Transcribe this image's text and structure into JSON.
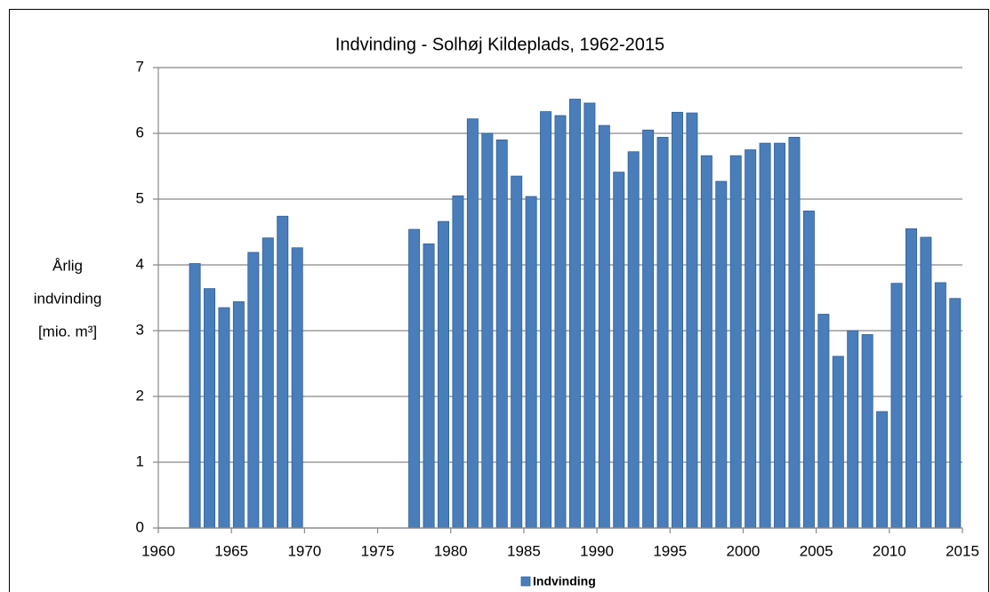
{
  "chart_data": {
    "type": "bar",
    "title": "Indvinding - Solhøj Kildeplads, 1962-2015",
    "ylabel": [
      "Årlig",
      "indvinding",
      "[mio. m³]"
    ],
    "x": [
      1962,
      1963,
      1964,
      1965,
      1966,
      1967,
      1968,
      1969,
      1970,
      1971,
      1972,
      1973,
      1974,
      1975,
      1976,
      1977,
      1978,
      1979,
      1980,
      1981,
      1982,
      1983,
      1984,
      1985,
      1986,
      1987,
      1988,
      1989,
      1990,
      1991,
      1992,
      1993,
      1994,
      1995,
      1996,
      1997,
      1998,
      1999,
      2000,
      2001,
      2002,
      2003,
      2004,
      2005,
      2006,
      2007,
      2008,
      2009,
      2010,
      2011,
      2012,
      2013,
      2014
    ],
    "series": [
      {
        "name": "Indvinding",
        "color": "#4a7ebb",
        "values": [
          4.02,
          3.64,
          3.35,
          3.44,
          4.19,
          4.41,
          4.74,
          4.26,
          null,
          null,
          null,
          null,
          null,
          null,
          null,
          4.54,
          4.32,
          4.66,
          5.05,
          6.22,
          6.0,
          5.9,
          5.35,
          5.04,
          6.33,
          6.27,
          6.52,
          6.46,
          6.12,
          5.41,
          5.72,
          6.05,
          5.94,
          6.32,
          6.31,
          5.66,
          5.27,
          5.66,
          5.75,
          5.85,
          5.85,
          5.94,
          4.82,
          3.25,
          2.61,
          3.0,
          2.94,
          1.77,
          3.72,
          4.55,
          4.42,
          3.73,
          3.49
        ]
      }
    ],
    "xlim": [
      1960,
      2015
    ],
    "xticks": [
      1960,
      1965,
      1970,
      1975,
      1980,
      1985,
      1990,
      1995,
      2000,
      2005,
      2010,
      2015
    ],
    "ylim": [
      0,
      7
    ],
    "yticks": [
      0,
      1,
      2,
      3,
      4,
      5,
      6,
      7
    ],
    "grid": true,
    "legend": "bottom"
  }
}
